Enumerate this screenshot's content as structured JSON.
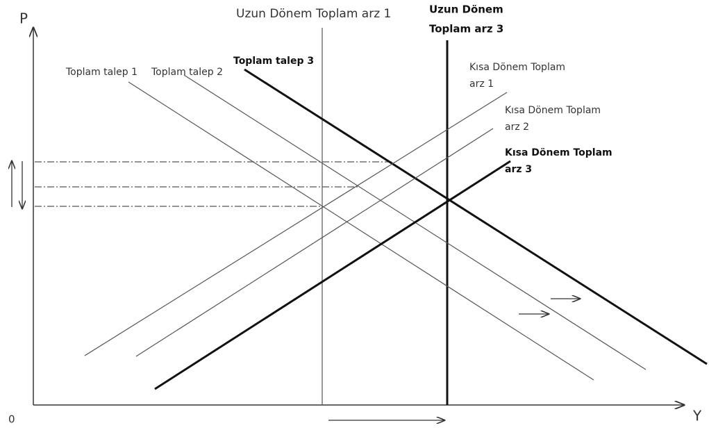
{
  "axes": {
    "y_label": "P",
    "x_label": "Y",
    "origin": "0"
  },
  "long_run_supply": [
    {
      "label": [
        "Uzun Dönem Toplam arz 1"
      ]
    },
    {
      "label": [
        "Uzun Dönem",
        "Toplam arz 3"
      ]
    }
  ],
  "demand": [
    {
      "label": "Toplam talep 1"
    },
    {
      "label": "Toplam talep 2"
    },
    {
      "label": "Toplam talep 3"
    }
  ],
  "short_run_supply": [
    {
      "label": [
        "Kısa Dönem Toplam",
        "arz 1"
      ]
    },
    {
      "label": [
        "Kısa Dönem Toplam",
        "arz 2"
      ]
    },
    {
      "label": [
        "Kısa Dönem Toplam",
        "arz 3"
      ]
    }
  ]
}
